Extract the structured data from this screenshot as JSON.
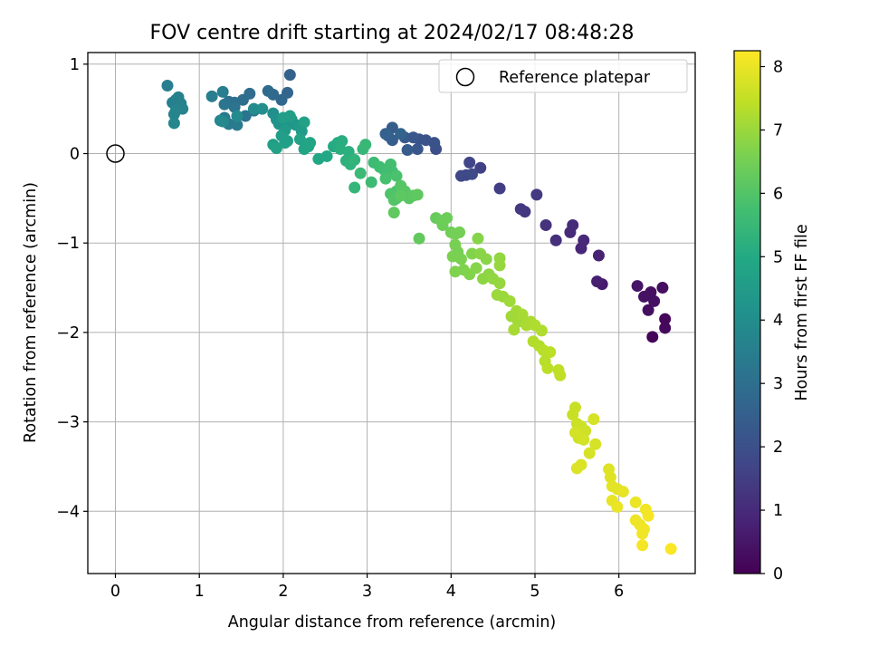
{
  "chart_data": {
    "type": "scatter",
    "title": "FOV centre drift starting at 2024/02/17 08:48:28",
    "xlabel": "Angular distance from reference (arcmin)",
    "ylabel": "Rotation from reference (arcmin)",
    "xlim": [
      -0.33,
      6.92
    ],
    "ylim": [
      -4.65,
      1.15
    ],
    "x_ticks": [
      "0",
      "1",
      "2",
      "3",
      "4",
      "5",
      "6"
    ],
    "y_ticks": [
      "1",
      "0",
      "−1",
      "−2",
      "−3",
      "−4"
    ],
    "grid": true,
    "legend": {
      "position": "top-right",
      "label": "Reference platepar"
    },
    "reference_point": {
      "x": 0,
      "y": 0
    },
    "colorbar": {
      "label": "Hours from first FF file",
      "colormap": "viridis",
      "range": [
        0,
        8.25
      ],
      "ticks": [
        "0",
        "1",
        "2",
        "3",
        "4",
        "5",
        "6",
        "7",
        "8"
      ]
    },
    "points": [
      [
        6.4,
        -2.05,
        0.1
      ],
      [
        6.55,
        -1.95,
        0.2
      ],
      [
        6.55,
        -1.85,
        0.15
      ],
      [
        6.52,
        -1.5,
        0.3
      ],
      [
        6.35,
        -1.75,
        0.3
      ],
      [
        6.38,
        -1.55,
        0.35
      ],
      [
        6.3,
        -1.6,
        0.4
      ],
      [
        6.22,
        -1.48,
        0.45
      ],
      [
        6.42,
        -1.65,
        0.35
      ],
      [
        5.8,
        -1.46,
        0.6
      ],
      [
        5.74,
        -1.43,
        0.7
      ],
      [
        5.76,
        -1.14,
        0.8
      ],
      [
        5.55,
        -1.06,
        0.9
      ],
      [
        5.58,
        -0.97,
        0.95
      ],
      [
        5.42,
        -0.88,
        1.0
      ],
      [
        5.45,
        -0.8,
        1.05
      ],
      [
        5.25,
        -0.97,
        1.1
      ],
      [
        5.13,
        -0.8,
        1.2
      ],
      [
        4.88,
        -0.65,
        1.3
      ],
      [
        4.83,
        -0.62,
        1.35
      ],
      [
        5.02,
        -0.46,
        1.4
      ],
      [
        4.58,
        -0.39,
        1.5
      ],
      [
        4.35,
        -0.16,
        1.6
      ],
      [
        4.22,
        -0.1,
        1.7
      ],
      [
        4.18,
        -0.24,
        1.75
      ],
      [
        4.12,
        -0.25,
        1.8
      ],
      [
        4.25,
        -0.23,
        1.85
      ],
      [
        3.82,
        0.05,
        2.0
      ],
      [
        3.8,
        0.12,
        2.05
      ],
      [
        3.7,
        0.15,
        2.1
      ],
      [
        3.62,
        0.16,
        2.15
      ],
      [
        3.6,
        0.05,
        2.2
      ],
      [
        3.55,
        0.18,
        2.25
      ],
      [
        3.45,
        0.18,
        2.3
      ],
      [
        3.48,
        0.04,
        2.35
      ],
      [
        3.3,
        0.29,
        2.4
      ],
      [
        3.3,
        0.15,
        2.45
      ],
      [
        3.25,
        0.2,
        2.5
      ],
      [
        3.22,
        0.22,
        2.55
      ],
      [
        3.4,
        0.22,
        2.6
      ],
      [
        2.08,
        0.88,
        2.6
      ],
      [
        2.05,
        0.68,
        2.7
      ],
      [
        1.98,
        0.6,
        2.75
      ],
      [
        1.88,
        0.66,
        2.8
      ],
      [
        1.82,
        0.7,
        2.85
      ],
      [
        1.6,
        0.67,
        2.9
      ],
      [
        1.52,
        0.6,
        2.95
      ],
      [
        1.42,
        0.57,
        3.0
      ],
      [
        1.35,
        0.58,
        3.05
      ],
      [
        1.42,
        0.52,
        3.1
      ],
      [
        1.55,
        0.42,
        3.15
      ],
      [
        1.65,
        0.48,
        3.2
      ],
      [
        1.3,
        0.55,
        3.25
      ],
      [
        1.3,
        0.4,
        3.3
      ],
      [
        1.35,
        0.33,
        3.35
      ],
      [
        1.45,
        0.32,
        3.4
      ],
      [
        1.28,
        0.69,
        3.45
      ],
      [
        1.15,
        0.64,
        3.5
      ],
      [
        0.62,
        0.76,
        3.5
      ],
      [
        0.68,
        0.57,
        3.55
      ],
      [
        0.72,
        0.6,
        3.55
      ],
      [
        0.75,
        0.63,
        3.6
      ],
      [
        0.78,
        0.56,
        3.6
      ],
      [
        0.8,
        0.5,
        3.65
      ],
      [
        0.72,
        0.48,
        3.7
      ],
      [
        0.7,
        0.44,
        3.7
      ],
      [
        0.7,
        0.34,
        3.75
      ],
      [
        1.25,
        0.37,
        3.8
      ],
      [
        1.28,
        0.36,
        3.85
      ],
      [
        1.45,
        0.42,
        3.9
      ],
      [
        1.65,
        0.5,
        4.0
      ],
      [
        1.75,
        0.5,
        4.05
      ],
      [
        1.88,
        0.45,
        4.1
      ],
      [
        1.92,
        0.38,
        4.15
      ],
      [
        1.95,
        0.33,
        4.2
      ],
      [
        2.05,
        0.32,
        4.25
      ],
      [
        2.1,
        0.38,
        4.3
      ],
      [
        2.15,
        0.32,
        4.35
      ],
      [
        2.2,
        0.3,
        4.4
      ],
      [
        2.22,
        0.25,
        4.45
      ],
      [
        2.02,
        0.26,
        4.5
      ],
      [
        1.98,
        0.2,
        4.55
      ],
      [
        2.05,
        0.14,
        4.6
      ],
      [
        2.02,
        0.12,
        4.65
      ],
      [
        1.88,
        0.1,
        4.65
      ],
      [
        1.92,
        0.06,
        4.7
      ],
      [
        2.2,
        0.16,
        4.75
      ],
      [
        2.25,
        0.35,
        4.7
      ],
      [
        2.08,
        0.42,
        4.6
      ],
      [
        2.0,
        0.4,
        4.55
      ],
      [
        2.25,
        0.05,
        4.8
      ],
      [
        2.3,
        0.08,
        4.85
      ],
      [
        2.32,
        0.12,
        4.85
      ],
      [
        2.42,
        -0.06,
        4.9
      ],
      [
        2.52,
        -0.03,
        4.95
      ],
      [
        2.6,
        0.08,
        5.0
      ],
      [
        2.65,
        0.12,
        5.05
      ],
      [
        2.7,
        0.14,
        5.1
      ],
      [
        2.68,
        0.05,
        5.15
      ],
      [
        2.78,
        0.02,
        5.2
      ],
      [
        2.75,
        -0.08,
        5.25
      ],
      [
        2.8,
        -0.12,
        5.3
      ],
      [
        2.85,
        -0.07,
        5.35
      ],
      [
        2.85,
        -0.38,
        5.4
      ],
      [
        2.95,
        0.05,
        5.45
      ],
      [
        2.98,
        0.1,
        5.5
      ],
      [
        2.92,
        -0.22,
        5.55
      ],
      [
        3.05,
        -0.32,
        5.6
      ],
      [
        3.08,
        -0.1,
        5.6
      ],
      [
        3.15,
        -0.15,
        5.65
      ],
      [
        3.2,
        -0.18,
        5.7
      ],
      [
        3.3,
        -0.2,
        5.75
      ],
      [
        3.28,
        -0.12,
        5.75
      ],
      [
        3.22,
        -0.28,
        5.8
      ],
      [
        3.35,
        -0.25,
        5.85
      ],
      [
        3.35,
        -0.42,
        5.9
      ],
      [
        3.28,
        -0.45,
        5.95
      ],
      [
        3.32,
        -0.52,
        6.0
      ],
      [
        3.35,
        -0.5,
        6.0
      ],
      [
        3.4,
        -0.36,
        6.05
      ],
      [
        3.45,
        -0.42,
        6.1
      ],
      [
        3.5,
        -0.5,
        6.1
      ],
      [
        3.55,
        -0.47,
        6.15
      ],
      [
        3.4,
        -0.47,
        6.15
      ],
      [
        3.6,
        -0.46,
        6.2
      ],
      [
        3.32,
        -0.66,
        6.2
      ],
      [
        3.62,
        -0.95,
        6.25
      ],
      [
        3.82,
        -0.72,
        6.3
      ],
      [
        3.88,
        -0.75,
        6.35
      ],
      [
        3.95,
        -0.72,
        6.4
      ],
      [
        3.9,
        -0.8,
        6.4
      ],
      [
        4.0,
        -0.88,
        6.45
      ],
      [
        4.05,
        -0.9,
        6.5
      ],
      [
        4.1,
        -0.88,
        6.5
      ],
      [
        4.05,
        -1.02,
        6.55
      ],
      [
        4.08,
        -1.1,
        6.55
      ],
      [
        4.02,
        -1.15,
        6.6
      ],
      [
        4.12,
        -1.18,
        6.6
      ],
      [
        4.05,
        -1.32,
        6.65
      ],
      [
        4.15,
        -1.3,
        6.65
      ],
      [
        4.25,
        -1.12,
        6.7
      ],
      [
        4.22,
        -1.35,
        6.7
      ],
      [
        4.3,
        -1.28,
        6.75
      ],
      [
        4.32,
        -0.95,
        6.75
      ],
      [
        4.35,
        -1.12,
        6.8
      ],
      [
        4.42,
        -1.18,
        6.8
      ],
      [
        4.38,
        -1.4,
        6.85
      ],
      [
        4.45,
        -1.35,
        6.85
      ],
      [
        4.5,
        -1.4,
        6.9
      ],
      [
        4.58,
        -1.17,
        6.9
      ],
      [
        4.58,
        -1.25,
        6.95
      ],
      [
        4.58,
        -1.45,
        6.95
      ],
      [
        4.55,
        -1.58,
        7.0
      ],
      [
        4.62,
        -1.6,
        7.0
      ],
      [
        4.7,
        -1.65,
        7.05
      ],
      [
        4.72,
        -1.82,
        7.05
      ],
      [
        4.78,
        -1.76,
        7.1
      ],
      [
        4.8,
        -1.88,
        7.1
      ],
      [
        4.85,
        -1.8,
        7.15
      ],
      [
        4.75,
        -1.97,
        7.15
      ],
      [
        4.9,
        -1.92,
        7.2
      ],
      [
        4.95,
        -1.88,
        7.2
      ],
      [
        5.0,
        -1.92,
        7.25
      ],
      [
        5.08,
        -1.98,
        7.25
      ],
      [
        4.98,
        -2.1,
        7.3
      ],
      [
        5.05,
        -2.15,
        7.3
      ],
      [
        5.1,
        -2.2,
        7.35
      ],
      [
        5.12,
        -2.32,
        7.35
      ],
      [
        5.18,
        -2.22,
        7.4
      ],
      [
        5.15,
        -2.4,
        7.4
      ],
      [
        5.28,
        -2.42,
        7.45
      ],
      [
        5.3,
        -2.48,
        7.45
      ],
      [
        5.48,
        -2.84,
        7.55
      ],
      [
        5.45,
        -2.92,
        7.55
      ],
      [
        5.5,
        -3.02,
        7.6
      ],
      [
        5.55,
        -3.05,
        7.6
      ],
      [
        5.6,
        -3.1,
        7.65
      ],
      [
        5.52,
        -3.18,
        7.65
      ],
      [
        5.48,
        -3.12,
        7.7
      ],
      [
        5.58,
        -3.2,
        7.7
      ],
      [
        5.65,
        -3.35,
        7.75
      ],
      [
        5.72,
        -3.25,
        7.75
      ],
      [
        5.7,
        -2.97,
        7.75
      ],
      [
        5.55,
        -3.48,
        7.8
      ],
      [
        5.5,
        -3.52,
        7.8
      ],
      [
        5.88,
        -3.53,
        7.85
      ],
      [
        5.9,
        -3.62,
        7.85
      ],
      [
        5.92,
        -3.72,
        7.9
      ],
      [
        5.98,
        -3.75,
        7.9
      ],
      [
        6.05,
        -3.78,
        7.95
      ],
      [
        5.92,
        -3.88,
        7.95
      ],
      [
        5.98,
        -3.95,
        8.0
      ],
      [
        6.2,
        -3.9,
        8.0
      ],
      [
        6.2,
        -4.1,
        8.05
      ],
      [
        6.25,
        -4.15,
        8.05
      ],
      [
        6.3,
        -4.2,
        8.1
      ],
      [
        6.28,
        -4.25,
        8.1
      ],
      [
        6.32,
        -3.98,
        8.1
      ],
      [
        6.35,
        -4.05,
        8.15
      ],
      [
        6.28,
        -4.38,
        8.15
      ],
      [
        6.62,
        -4.42,
        8.2
      ]
    ]
  }
}
